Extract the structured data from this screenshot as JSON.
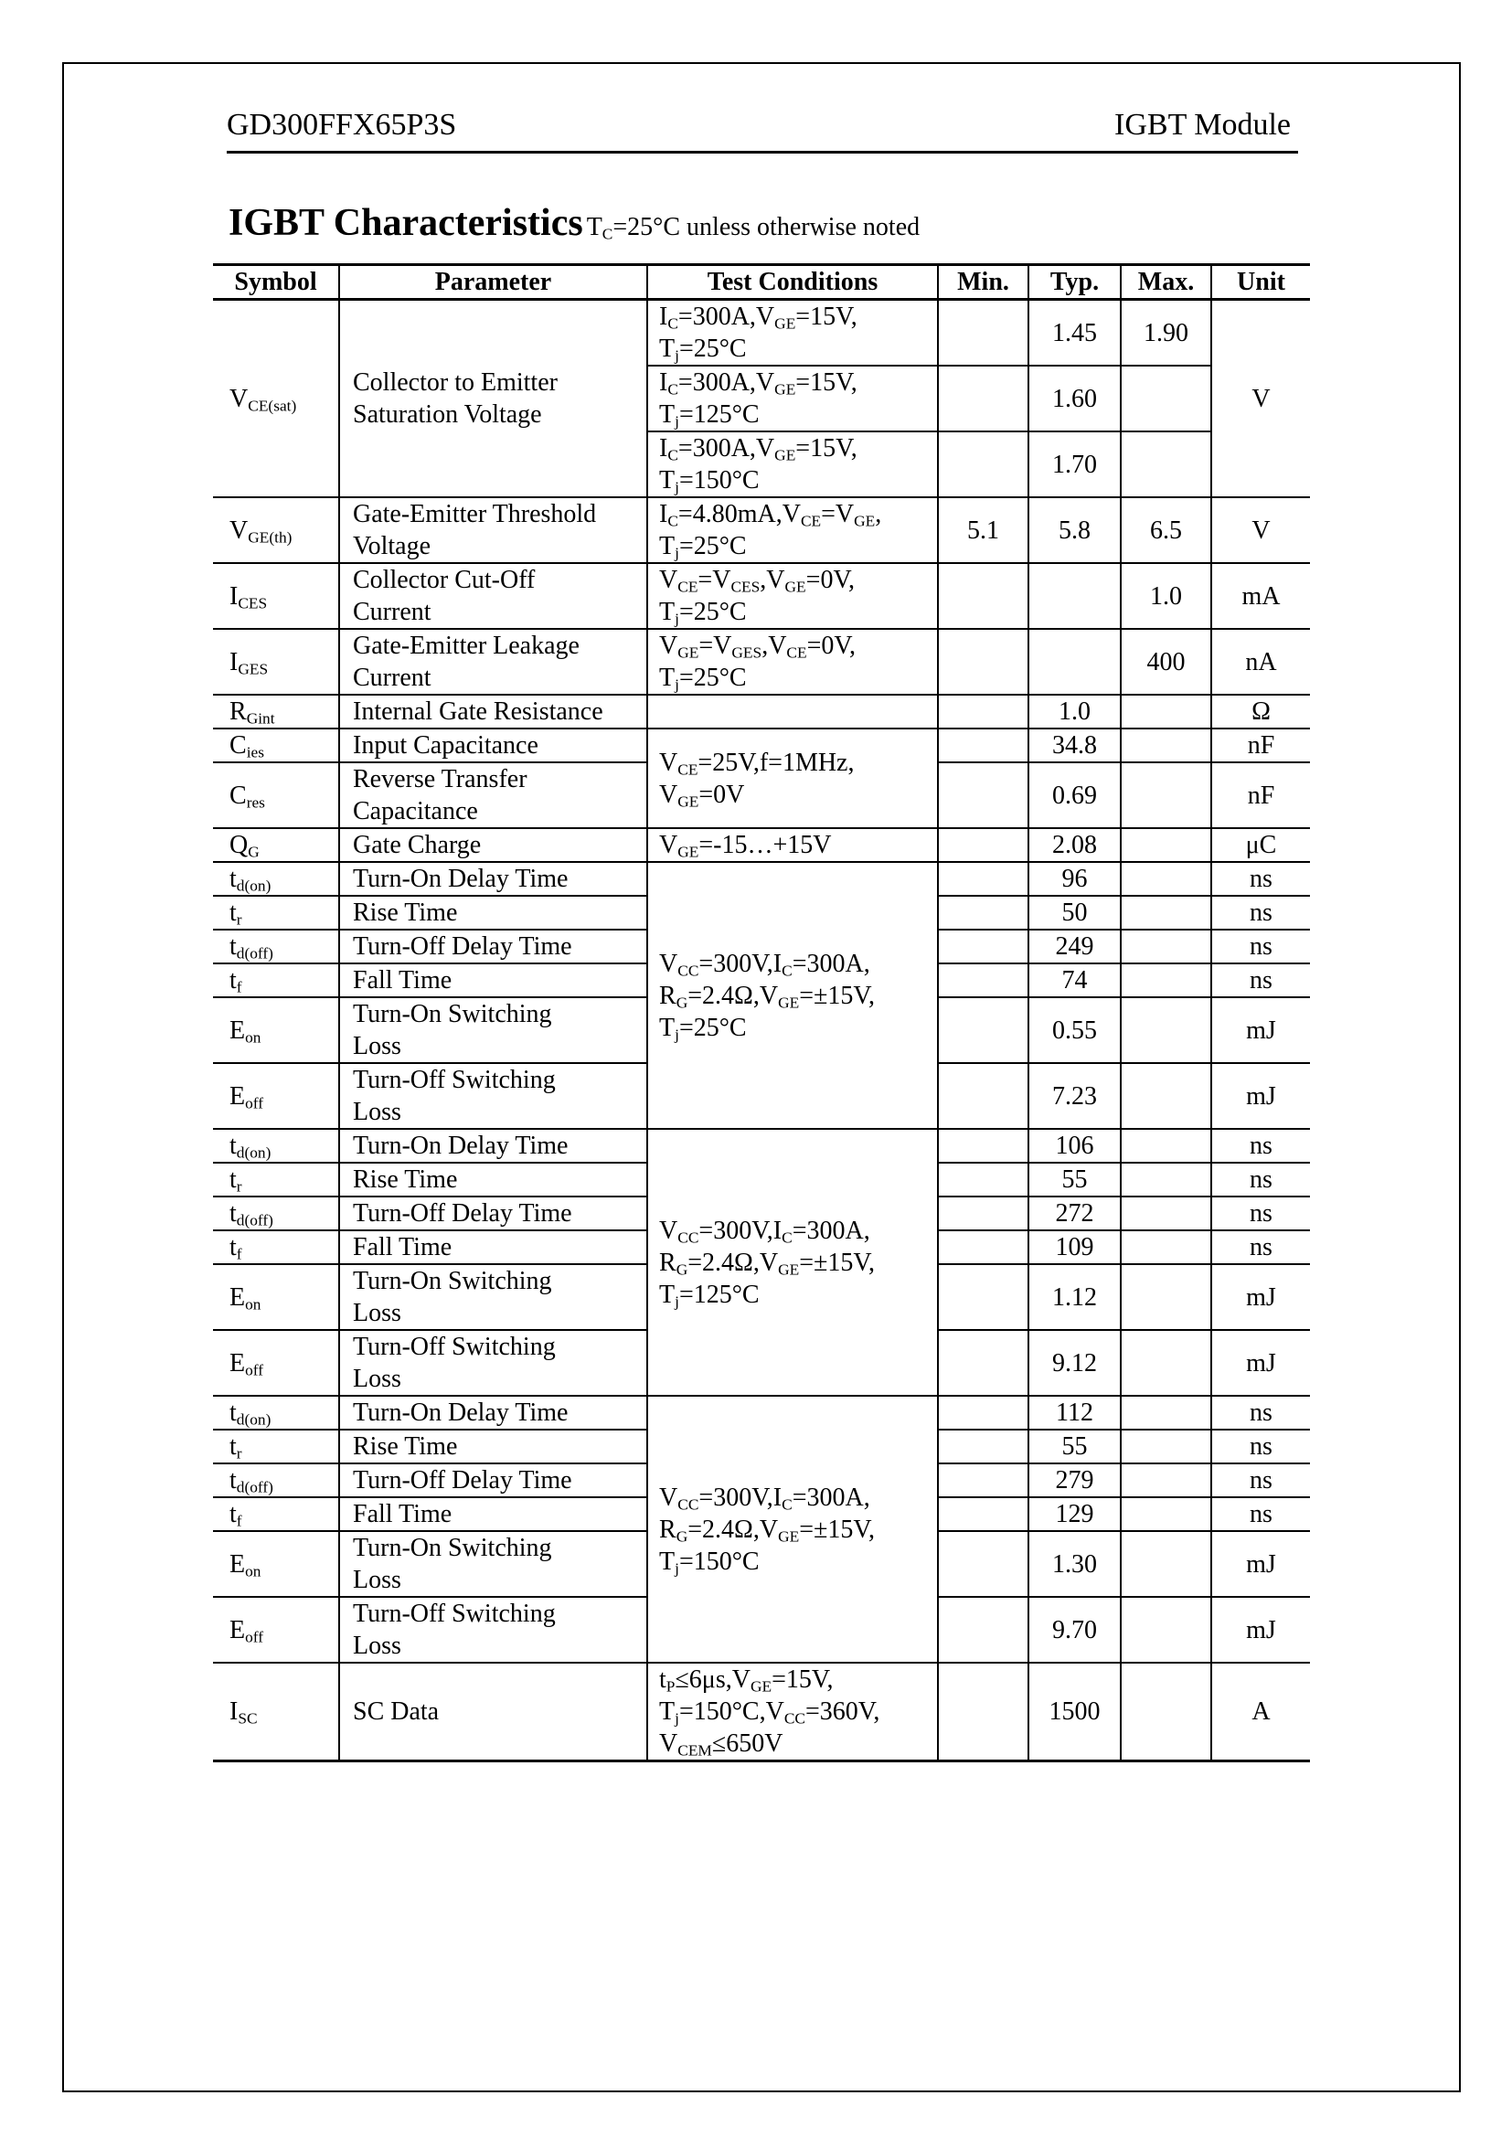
{
  "header": {
    "part_number": "GD300FFX65P3S",
    "doc_type": "IGBT Module"
  },
  "section": {
    "title": "IGBT Characteristics",
    "condition": "T_{C}=25°C unless otherwise noted"
  },
  "columns": [
    "Symbol",
    "Parameter",
    "Test Conditions",
    "Min.",
    "Typ.",
    "Max.",
    "Unit"
  ],
  "groups": [
    {
      "conditions": [
        "I_{C}=300A,V_{GE}=15V,\nT_{j}=25°C",
        "I_{C}=300A,V_{GE}=15V,\nT_{j}=125°C",
        "I_{C}=300A,V_{GE}=15V,\nT_{j}=150°C"
      ],
      "symbol": "V_{CE(sat)}",
      "parameter": "Collector to Emitter\nSaturation Voltage",
      "unit": "V",
      "values": [
        {
          "min": "",
          "typ": "1.45",
          "max": "1.90"
        },
        {
          "min": "",
          "typ": "1.60",
          "max": ""
        },
        {
          "min": "",
          "typ": "1.70",
          "max": ""
        }
      ]
    },
    {
      "condition": "I_{C}=4.80mA,V_{CE}=V_{GE},\nT_{j}=25°C",
      "items": [
        {
          "symbol": "V_{GE(th)}",
          "parameter": "Gate-Emitter Threshold\nVoltage",
          "min": "5.1",
          "typ": "5.8",
          "max": "6.5",
          "unit": "V"
        }
      ]
    },
    {
      "condition": "V_{CE}=V_{CES},V_{GE}=0V,\nT_{j}=25°C",
      "items": [
        {
          "symbol": "I_{CES}",
          "parameter": "Collector Cut-Off\nCurrent",
          "min": "",
          "typ": "",
          "max": "1.0",
          "unit": "mA"
        }
      ]
    },
    {
      "condition": "V_{GE}=V_{GES},V_{CE}=0V,\nT_{j}=25°C",
      "items": [
        {
          "symbol": "I_{GES}",
          "parameter": "Gate-Emitter Leakage\nCurrent",
          "min": "",
          "typ": "",
          "max": "400",
          "unit": "nA"
        }
      ]
    },
    {
      "condition": "",
      "items": [
        {
          "symbol": "R_{Gint}",
          "parameter": "Internal Gate Resistance",
          "min": "",
          "typ": "1.0",
          "max": "",
          "unit": "Ω"
        }
      ]
    },
    {
      "condition": "V_{CE}=25V,f=1MHz,\nV_{GE}=0V",
      "items": [
        {
          "symbol": "C_{ies}",
          "parameter": "Input Capacitance",
          "min": "",
          "typ": "34.8",
          "max": "",
          "unit": "nF"
        },
        {
          "symbol": "C_{res}",
          "parameter": "Reverse Transfer\nCapacitance",
          "min": "",
          "typ": "0.69",
          "max": "",
          "unit": "nF"
        }
      ]
    },
    {
      "condition": "V_{GE}=-15…+15V",
      "items": [
        {
          "symbol": "Q_{G}",
          "parameter": "Gate Charge",
          "min": "",
          "typ": "2.08",
          "max": "",
          "unit": "μC"
        }
      ]
    },
    {
      "condition": "V_{CC}=300V,I_{C}=300A,\nR_{G}=2.4Ω,V_{GE}=±15V,\nT_{j}=25°C",
      "items": [
        {
          "symbol": "t_{d(on)}",
          "parameter": "Turn-On Delay Time",
          "min": "",
          "typ": "96",
          "max": "",
          "unit": "ns"
        },
        {
          "symbol": "t_{r}",
          "parameter": "Rise Time",
          "min": "",
          "typ": "50",
          "max": "",
          "unit": "ns"
        },
        {
          "symbol": "t_{d(off)}",
          "parameter": "Turn-Off Delay Time",
          "min": "",
          "typ": "249",
          "max": "",
          "unit": "ns"
        },
        {
          "symbol": "t_{f}",
          "parameter": "Fall Time",
          "min": "",
          "typ": "74",
          "max": "",
          "unit": "ns"
        },
        {
          "symbol": "E_{on}",
          "parameter": "Turn-On Switching\nLoss",
          "min": "",
          "typ": "0.55",
          "max": "",
          "unit": "mJ"
        },
        {
          "symbol": "E_{off}",
          "parameter": "Turn-Off Switching\nLoss",
          "min": "",
          "typ": "7.23",
          "max": "",
          "unit": "mJ"
        }
      ]
    },
    {
      "condition": "V_{CC}=300V,I_{C}=300A,\nR_{G}=2.4Ω,V_{GE}=±15V,\nT_{j}=125°C",
      "items": [
        {
          "symbol": "t_{d(on)}",
          "parameter": "Turn-On Delay Time",
          "min": "",
          "typ": "106",
          "max": "",
          "unit": "ns"
        },
        {
          "symbol": "t_{r}",
          "parameter": "Rise Time",
          "min": "",
          "typ": "55",
          "max": "",
          "unit": "ns"
        },
        {
          "symbol": "t_{d(off)}",
          "parameter": "Turn-Off Delay Time",
          "min": "",
          "typ": "272",
          "max": "",
          "unit": "ns"
        },
        {
          "symbol": "t_{f}",
          "parameter": "Fall Time",
          "min": "",
          "typ": "109",
          "max": "",
          "unit": "ns"
        },
        {
          "symbol": "E_{on}",
          "parameter": "Turn-On Switching\nLoss",
          "min": "",
          "typ": "1.12",
          "max": "",
          "unit": "mJ"
        },
        {
          "symbol": "E_{off}",
          "parameter": "Turn-Off Switching\nLoss",
          "min": "",
          "typ": "9.12",
          "max": "",
          "unit": "mJ"
        }
      ]
    },
    {
      "condition": "V_{CC}=300V,I_{C}=300A,\nR_{G}=2.4Ω,V_{GE}=±15V,\nT_{j}=150°C",
      "items": [
        {
          "symbol": "t_{d(on)}",
          "parameter": "Turn-On Delay Time",
          "min": "",
          "typ": "112",
          "max": "",
          "unit": "ns"
        },
        {
          "symbol": "t_{r}",
          "parameter": "Rise Time",
          "min": "",
          "typ": "55",
          "max": "",
          "unit": "ns"
        },
        {
          "symbol": "t_{d(off)}",
          "parameter": "Turn-Off Delay Time",
          "min": "",
          "typ": "279",
          "max": "",
          "unit": "ns"
        },
        {
          "symbol": "t_{f}",
          "parameter": "Fall Time",
          "min": "",
          "typ": "129",
          "max": "",
          "unit": "ns"
        },
        {
          "symbol": "E_{on}",
          "parameter": "Turn-On Switching\nLoss",
          "min": "",
          "typ": "1.30",
          "max": "",
          "unit": "mJ"
        },
        {
          "symbol": "E_{off}",
          "parameter": "Turn-Off Switching\nLoss",
          "min": "",
          "typ": "9.70",
          "max": "",
          "unit": "mJ"
        }
      ]
    },
    {
      "condition": "t_{P}≤6μs,V_{GE}=15V,\nT_{j}=150°C,V_{CC}=360V,\nV_{CEM}≤650V",
      "items": [
        {
          "symbol": "I_{SC}",
          "parameter": "SC Data",
          "min": "",
          "typ": "1500",
          "max": "",
          "unit": "A"
        }
      ]
    }
  ]
}
